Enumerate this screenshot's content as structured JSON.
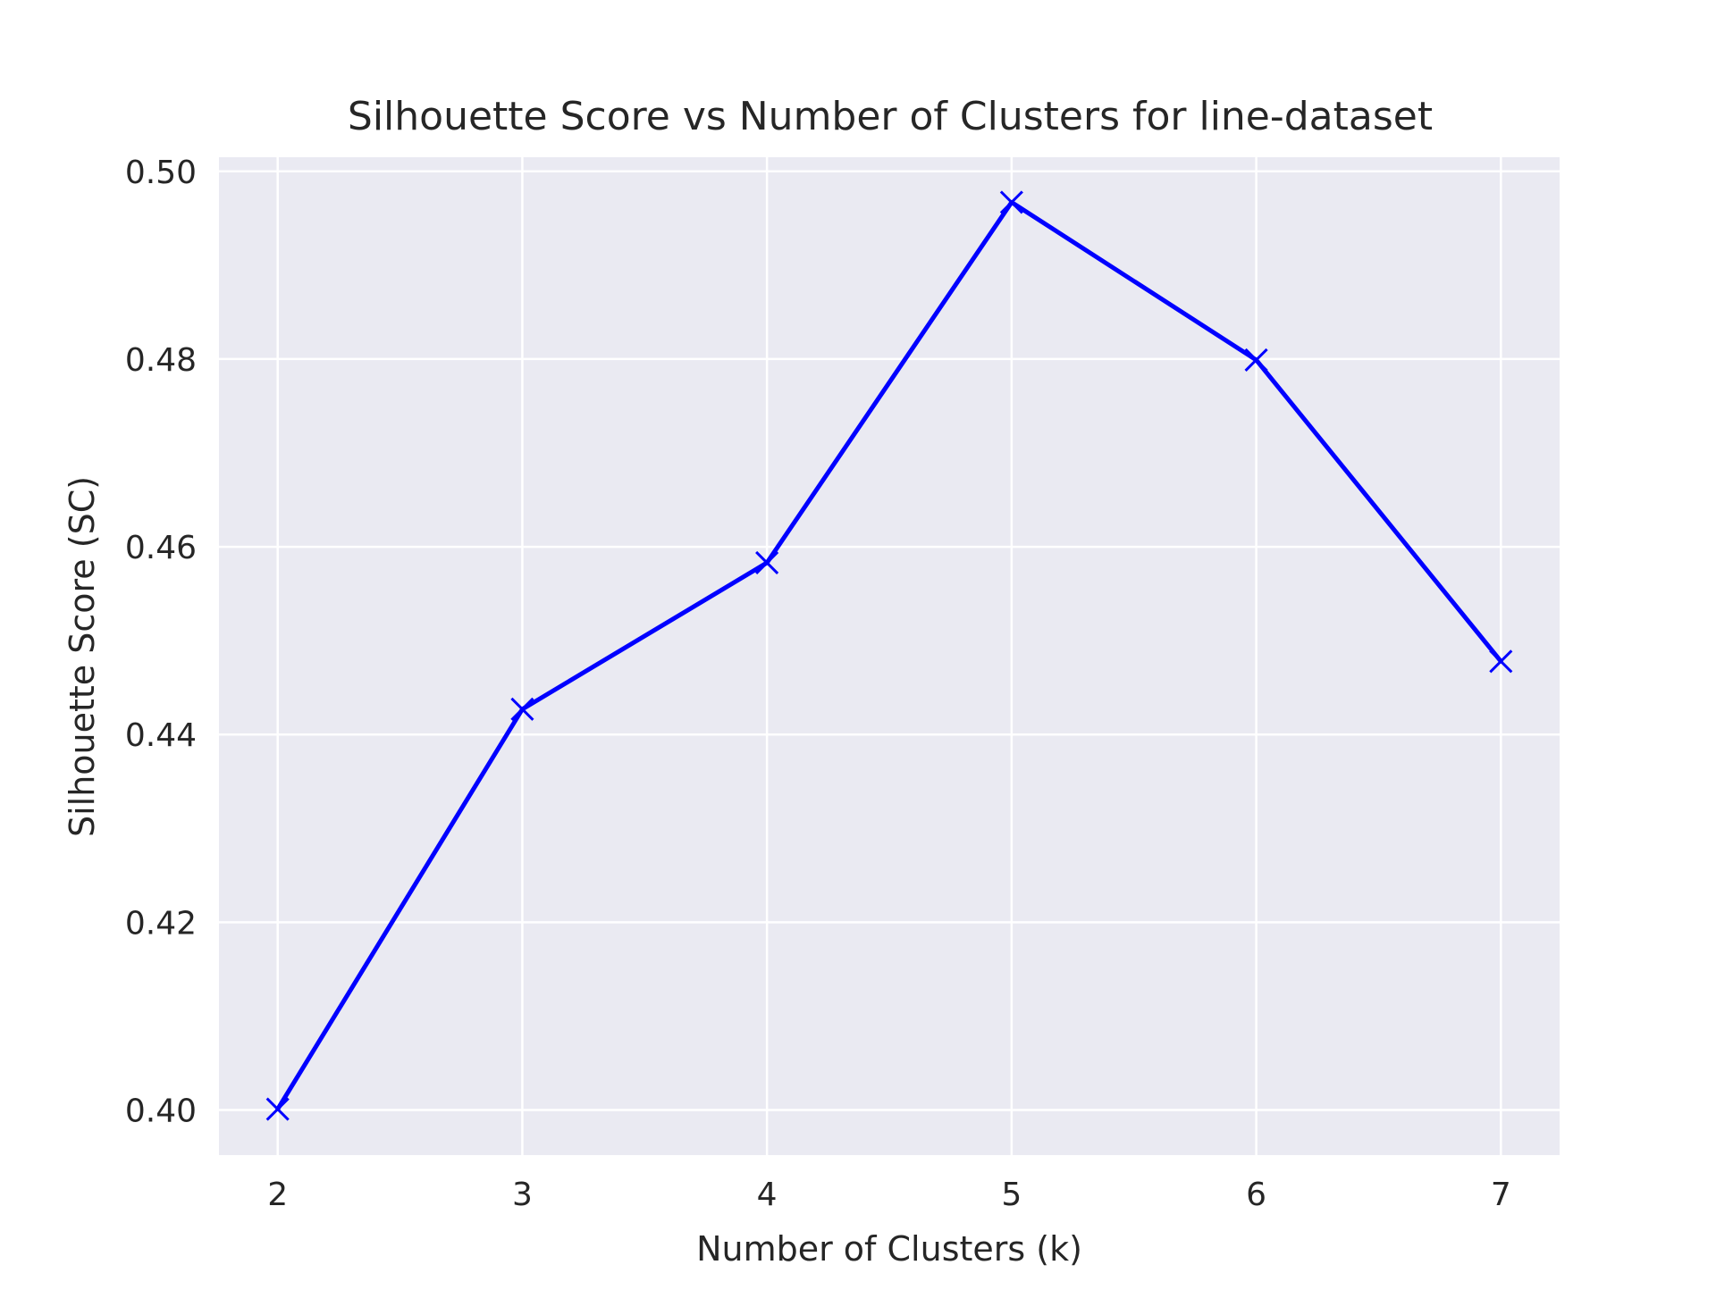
{
  "chart_data": {
    "type": "line",
    "title": "Silhouette Score vs Number of Clusters for line-dataset",
    "xlabel": "Number of Clusters (k)",
    "ylabel": "Silhouette Score (SC)",
    "x": [
      2,
      3,
      4,
      5,
      6,
      7
    ],
    "series": [
      {
        "values": [
          0.4001,
          0.4427,
          0.4583,
          0.4967,
          0.4799,
          0.4478
        ]
      }
    ],
    "xlim": [
      1.76,
      7.24
    ],
    "ylim": [
      0.3952,
      0.5015
    ],
    "xticks": [
      "2",
      "3",
      "4",
      "5",
      "6",
      "7"
    ],
    "yticks": [
      "0.40",
      "0.42",
      "0.44",
      "0.46",
      "0.48",
      "0.50"
    ],
    "ytick_values": [
      0.4,
      0.42,
      0.44,
      0.46,
      0.48,
      0.5
    ],
    "xtick_values": [
      2,
      3,
      4,
      5,
      6,
      7
    ],
    "grid": true,
    "legend": false,
    "marker": "x",
    "line_color": "#0000ff",
    "plot_background": "#eaeaf2",
    "grid_color": "#ffffff"
  }
}
